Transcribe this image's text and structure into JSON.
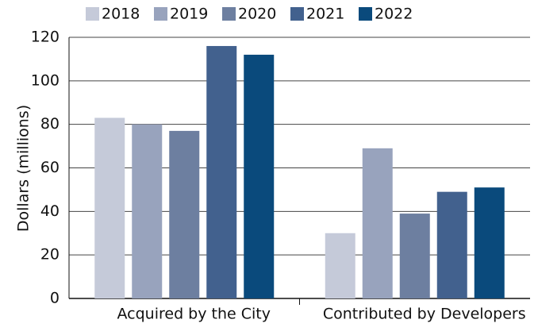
{
  "chart_data": {
    "type": "bar",
    "y_label": "Dollars (millions)",
    "categories": [
      "Acquired by the City",
      "Contributed by Developers"
    ],
    "series": [
      {
        "name": "2018",
        "color": "#c5cad9",
        "values": [
          83,
          30
        ]
      },
      {
        "name": "2019",
        "color": "#98a3bd",
        "values": [
          80,
          69
        ]
      },
      {
        "name": "2020",
        "color": "#6d7fa0",
        "values": [
          77,
          39
        ]
      },
      {
        "name": "2021",
        "color": "#42618e",
        "values": [
          116,
          49
        ]
      },
      {
        "name": "2022",
        "color": "#0a4a7c",
        "values": [
          112,
          51
        ]
      }
    ],
    "ylim": [
      0,
      120
    ],
    "yticks": [
      0,
      20,
      40,
      60,
      80,
      100,
      120
    ],
    "grid": true,
    "legend": "top"
  }
}
